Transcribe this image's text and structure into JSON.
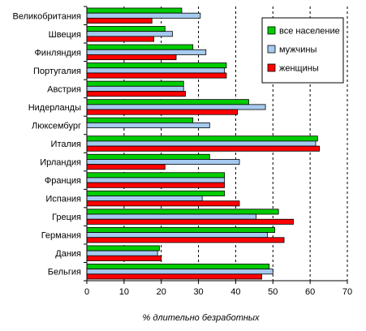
{
  "chart_data": {
    "type": "bar",
    "orientation": "horizontal",
    "title": "",
    "xlabel": "% длительно безработных",
    "ylabel": "",
    "xlim": [
      0,
      70
    ],
    "xticks": [
      0,
      10,
      20,
      30,
      40,
      50,
      60,
      70
    ],
    "grid": "vertical dashed",
    "legend_position": "top-right",
    "categories": [
      "Великобритания",
      "Швеция",
      "Финляндия",
      "Португалия",
      "Австрия",
      "Нидерланды",
      "Люксембург",
      "Италия",
      "Ирландия",
      "Франция",
      "Испания",
      "Греция",
      "Германия",
      "Дания",
      "Бельгия"
    ],
    "series": [
      {
        "name": "все население",
        "color": "#00cc00",
        "values": [
          25.5,
          21,
          28.5,
          37.5,
          26,
          43.5,
          28.5,
          62,
          33,
          37,
          37,
          51.5,
          50.5,
          19.5,
          49
        ]
      },
      {
        "name": "мужчины",
        "color": "#a6caf0",
        "values": [
          30.5,
          23,
          32,
          37,
          26,
          48,
          33,
          61.5,
          41,
          37,
          31,
          45.5,
          48.5,
          19,
          50
        ]
      },
      {
        "name": "женщины",
        "color": "#ff0000",
        "values": [
          17.5,
          18,
          24,
          37.5,
          26.5,
          40.5,
          null,
          62.5,
          21,
          37,
          41,
          55.5,
          53,
          20,
          47
        ]
      }
    ]
  }
}
